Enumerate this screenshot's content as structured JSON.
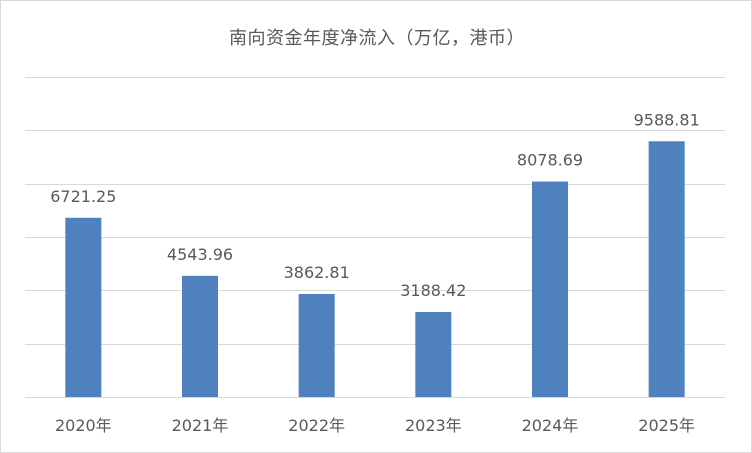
{
  "chart_data": {
    "type": "bar",
    "title": "南向资金年度净流入（万亿，港币）",
    "categories": [
      "2020年",
      "2021年",
      "2022年",
      "2023年",
      "2024年",
      "2025年"
    ],
    "values": [
      6721.25,
      4543.96,
      3862.81,
      3188.42,
      8078.69,
      9588.81
    ],
    "data_labels": [
      "6721.25",
      "4543.96",
      "3862.81",
      "3188.42",
      "8078.69",
      "9588.81"
    ],
    "xlabel": "",
    "ylabel": "",
    "ylim": [
      0,
      12000
    ],
    "y_tick_step": 2000,
    "y_tick_labels_shown": false,
    "grid": true,
    "legend": "none",
    "colors": {
      "bar": "#4e81bd",
      "grid": "#d9d9d9",
      "text": "#595959"
    }
  }
}
